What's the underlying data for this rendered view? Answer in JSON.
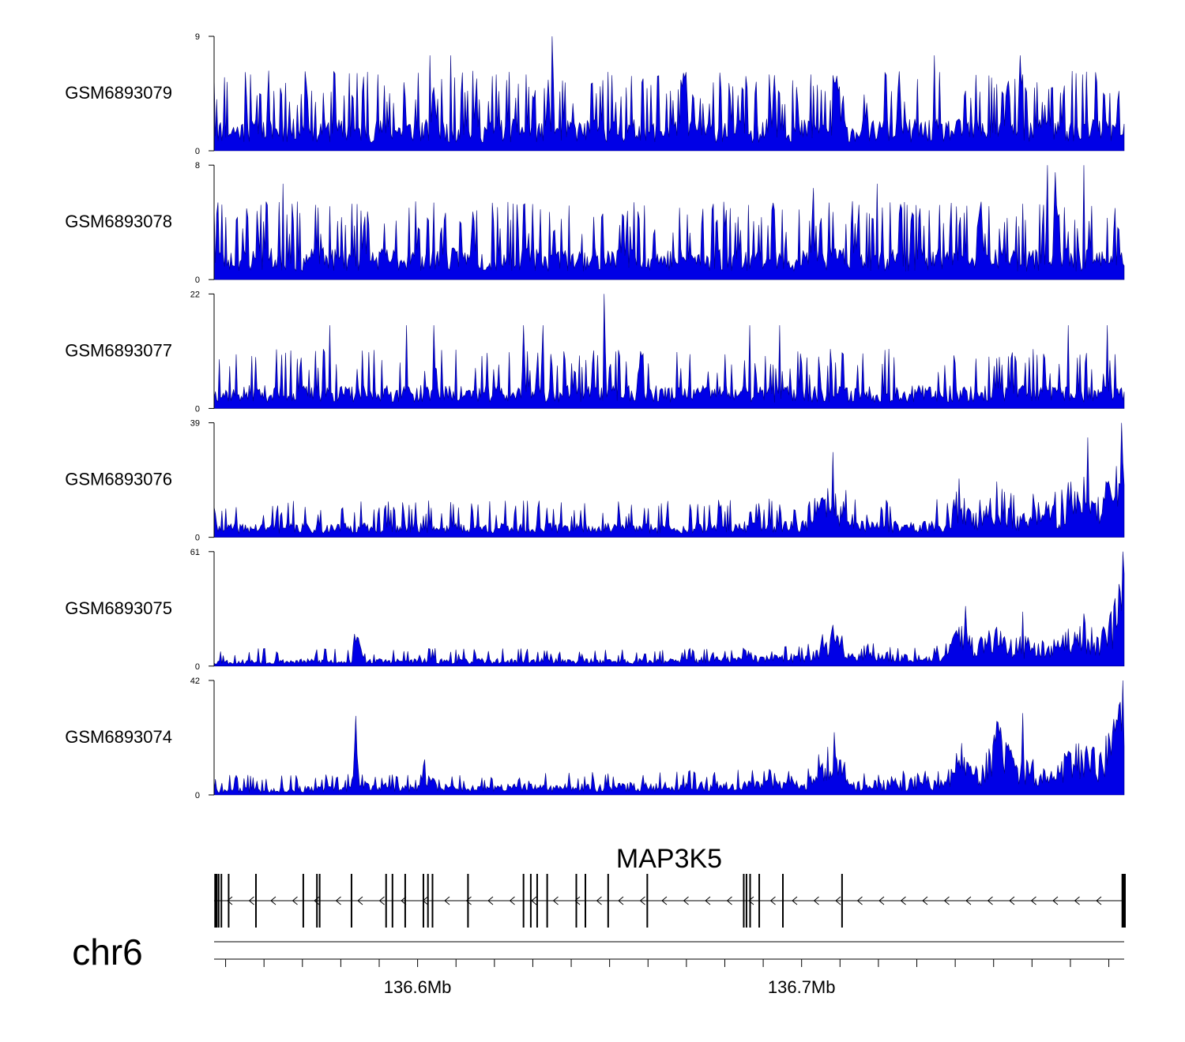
{
  "chart_data": {
    "type": "area",
    "title": "",
    "fill_color": "#0000e6",
    "outline_color": "#000080",
    "region": {
      "start": 136.547,
      "end": 136.784,
      "unit": "Mb"
    },
    "tracks": [
      {
        "name": "GSM6893079",
        "ymax": 9,
        "ymin_label": "0",
        "ymax_label": "9",
        "profile": [
          [
            0.0,
            1.8
          ],
          [
            0.1,
            1.8
          ],
          [
            0.2,
            1.8
          ],
          [
            0.3,
            1.8
          ],
          [
            0.4,
            1.8
          ],
          [
            0.5,
            1.8
          ],
          [
            0.6,
            1.8
          ],
          [
            0.7,
            1.8
          ],
          [
            0.8,
            1.8
          ],
          [
            0.9,
            1.8
          ],
          [
            1.0,
            1.8
          ]
        ],
        "peaks": [
          [
            0.0,
            6.0
          ],
          [
            0.04,
            6.0
          ],
          [
            0.18,
            6.0
          ],
          [
            0.237,
            7.5
          ],
          [
            0.26,
            7.5
          ],
          [
            0.343,
            6.0
          ],
          [
            0.371,
            9.0
          ],
          [
            0.61,
            6.0
          ],
          [
            0.655,
            6.0
          ],
          [
            0.791,
            7.5
          ],
          [
            0.888,
            6.0
          ],
          [
            0.886,
            7.5
          ],
          [
            0.954,
            6.0
          ]
        ],
        "spike_base": 3.0,
        "spike_count": 230,
        "seed": 11
      },
      {
        "name": "GSM6893078",
        "ymax": 8,
        "ymin_label": "0",
        "ymax_label": "8",
        "profile": [
          [
            0.0,
            1.6
          ],
          [
            0.1,
            1.6
          ],
          [
            0.2,
            1.6
          ],
          [
            0.3,
            1.6
          ],
          [
            0.4,
            1.6
          ],
          [
            0.5,
            1.6
          ],
          [
            0.6,
            1.6
          ],
          [
            0.7,
            1.6
          ],
          [
            0.8,
            1.6
          ],
          [
            0.9,
            1.6
          ],
          [
            1.0,
            1.6
          ]
        ],
        "peaks": [
          [
            0.076,
            6.7
          ],
          [
            0.085,
            5.3
          ],
          [
            0.151,
            5.3
          ],
          [
            0.341,
            5.3
          ],
          [
            0.659,
            6.4
          ],
          [
            0.728,
            6.7
          ],
          [
            0.888,
            5.3
          ],
          [
            0.915,
            8.0
          ],
          [
            0.924,
            7.5
          ],
          [
            0.955,
            8.0
          ],
          [
            0.99,
            5.0
          ]
        ],
        "spike_base": 2.6,
        "spike_count": 230,
        "seed": 23
      },
      {
        "name": "GSM6893077",
        "ymax": 22,
        "ymin_label": "0",
        "ymax_label": "22",
        "profile": [
          [
            0.0,
            3.2
          ],
          [
            0.1,
            3.2
          ],
          [
            0.2,
            3.2
          ],
          [
            0.3,
            3.2
          ],
          [
            0.4,
            3.2
          ],
          [
            0.5,
            3.2
          ],
          [
            0.6,
            3.2
          ],
          [
            0.7,
            3.2
          ],
          [
            0.8,
            3.2
          ],
          [
            0.9,
            3.2
          ],
          [
            1.0,
            3.2
          ]
        ],
        "peaks": [
          [
            0.127,
            16.0
          ],
          [
            0.212,
            16.0
          ],
          [
            0.241,
            16.0
          ],
          [
            0.34,
            16.0
          ],
          [
            0.362,
            16.0
          ],
          [
            0.429,
            22.0
          ],
          [
            0.468,
            11.0
          ],
          [
            0.589,
            16.0
          ],
          [
            0.622,
            16.0
          ],
          [
            0.938,
            16.0
          ],
          [
            0.981,
            16.0
          ]
        ],
        "spike_base": 5.5,
        "spike_count": 150,
        "seed": 37
      },
      {
        "name": "GSM6893076",
        "ymax": 39,
        "ymin_label": "0",
        "ymax_label": "39",
        "profile": [
          [
            0.0,
            3.5
          ],
          [
            0.25,
            3.5
          ],
          [
            0.5,
            3.5
          ],
          [
            0.65,
            4.5
          ],
          [
            0.67,
            12.0
          ],
          [
            0.69,
            8.0
          ],
          [
            0.71,
            4.0
          ],
          [
            0.8,
            4.0
          ],
          [
            0.82,
            9.0
          ],
          [
            0.84,
            6.0
          ],
          [
            0.86,
            10.0
          ],
          [
            0.88,
            6.0
          ],
          [
            0.93,
            7.0
          ],
          [
            0.95,
            14.0
          ],
          [
            0.97,
            8.0
          ],
          [
            0.985,
            16.0
          ],
          [
            1.0,
            22.0
          ]
        ],
        "peaks": [
          [
            0.68,
            29.0
          ],
          [
            0.819,
            20.0
          ],
          [
            0.86,
            19.0
          ],
          [
            0.96,
            34.0
          ],
          [
            0.997,
            39.0
          ]
        ],
        "spike_base": 6.0,
        "spike_count": 150,
        "seed": 41
      },
      {
        "name": "GSM6893075",
        "ymax": 61,
        "ymin_label": "0",
        "ymax_label": "61",
        "profile": [
          [
            0.0,
            2.5
          ],
          [
            0.15,
            3.0
          ],
          [
            0.155,
            12.0
          ],
          [
            0.165,
            3.0
          ],
          [
            0.5,
            3.0
          ],
          [
            0.65,
            5.0
          ],
          [
            0.68,
            14.0
          ],
          [
            0.7,
            6.0
          ],
          [
            0.8,
            5.0
          ],
          [
            0.82,
            16.0
          ],
          [
            0.84,
            9.0
          ],
          [
            0.86,
            16.0
          ],
          [
            0.88,
            10.0
          ],
          [
            0.92,
            8.0
          ],
          [
            0.95,
            18.0
          ],
          [
            0.97,
            14.0
          ],
          [
            0.985,
            22.0
          ],
          [
            1.0,
            38.0
          ]
        ],
        "peaks": [
          [
            0.158,
            15.0
          ],
          [
            0.68,
            22.0
          ],
          [
            0.825,
            32.0
          ],
          [
            0.889,
            29.0
          ],
          [
            0.955,
            28.0
          ],
          [
            0.998,
            61.0
          ]
        ],
        "spike_base": 4.5,
        "spike_count": 140,
        "seed": 53
      },
      {
        "name": "GSM6893074",
        "ymax": 42,
        "ymin_label": "0",
        "ymax_label": "42",
        "profile": [
          [
            0.0,
            2.0
          ],
          [
            0.15,
            2.5
          ],
          [
            0.155,
            14.0
          ],
          [
            0.16,
            4.0
          ],
          [
            0.225,
            2.5
          ],
          [
            0.23,
            8.0
          ],
          [
            0.24,
            3.0
          ],
          [
            0.4,
            3.0
          ],
          [
            0.65,
            4.5
          ],
          [
            0.67,
            14.0
          ],
          [
            0.69,
            8.0
          ],
          [
            0.7,
            4.0
          ],
          [
            0.8,
            4.0
          ],
          [
            0.82,
            12.0
          ],
          [
            0.84,
            5.0
          ],
          [
            0.86,
            20.0
          ],
          [
            0.88,
            10.0
          ],
          [
            0.92,
            6.0
          ],
          [
            0.95,
            15.0
          ],
          [
            0.97,
            12.0
          ],
          [
            0.985,
            18.0
          ],
          [
            1.0,
            28.0
          ]
        ],
        "peaks": [
          [
            0.156,
            29.0
          ],
          [
            0.232,
            13.0
          ],
          [
            0.681,
            23.0
          ],
          [
            0.821,
            19.0
          ],
          [
            0.86,
            27.0
          ],
          [
            0.888,
            30.0
          ],
          [
            0.998,
            42.0
          ]
        ],
        "spike_base": 3.5,
        "spike_count": 140,
        "seed": 67
      }
    ],
    "gene": {
      "name": "MAP3K5",
      "strand": "-",
      "exons": [
        0.002,
        0.005,
        0.008,
        0.016,
        0.046,
        0.098,
        0.113,
        0.116,
        0.151,
        0.189,
        0.196,
        0.21,
        0.23,
        0.235,
        0.24,
        0.279,
        0.34,
        0.348,
        0.355,
        0.366,
        0.398,
        0.408,
        0.433,
        0.476,
        0.582,
        0.585,
        0.589,
        0.599,
        0.625,
        0.69,
        0.998,
        1.0
      ]
    },
    "chromosome": "chr6",
    "axis": {
      "minor_ticks_mb": [
        136.55,
        136.56,
        136.57,
        136.58,
        136.59,
        136.6,
        136.61,
        136.62,
        136.63,
        136.64,
        136.65,
        136.66,
        136.67,
        136.68,
        136.69,
        136.7,
        136.71,
        136.72,
        136.73,
        136.74,
        136.75,
        136.76,
        136.77,
        136.78
      ],
      "major_labels": [
        {
          "mb": 136.6,
          "label": "136.6Mb"
        },
        {
          "mb": 136.7,
          "label": "136.7Mb"
        }
      ]
    }
  }
}
